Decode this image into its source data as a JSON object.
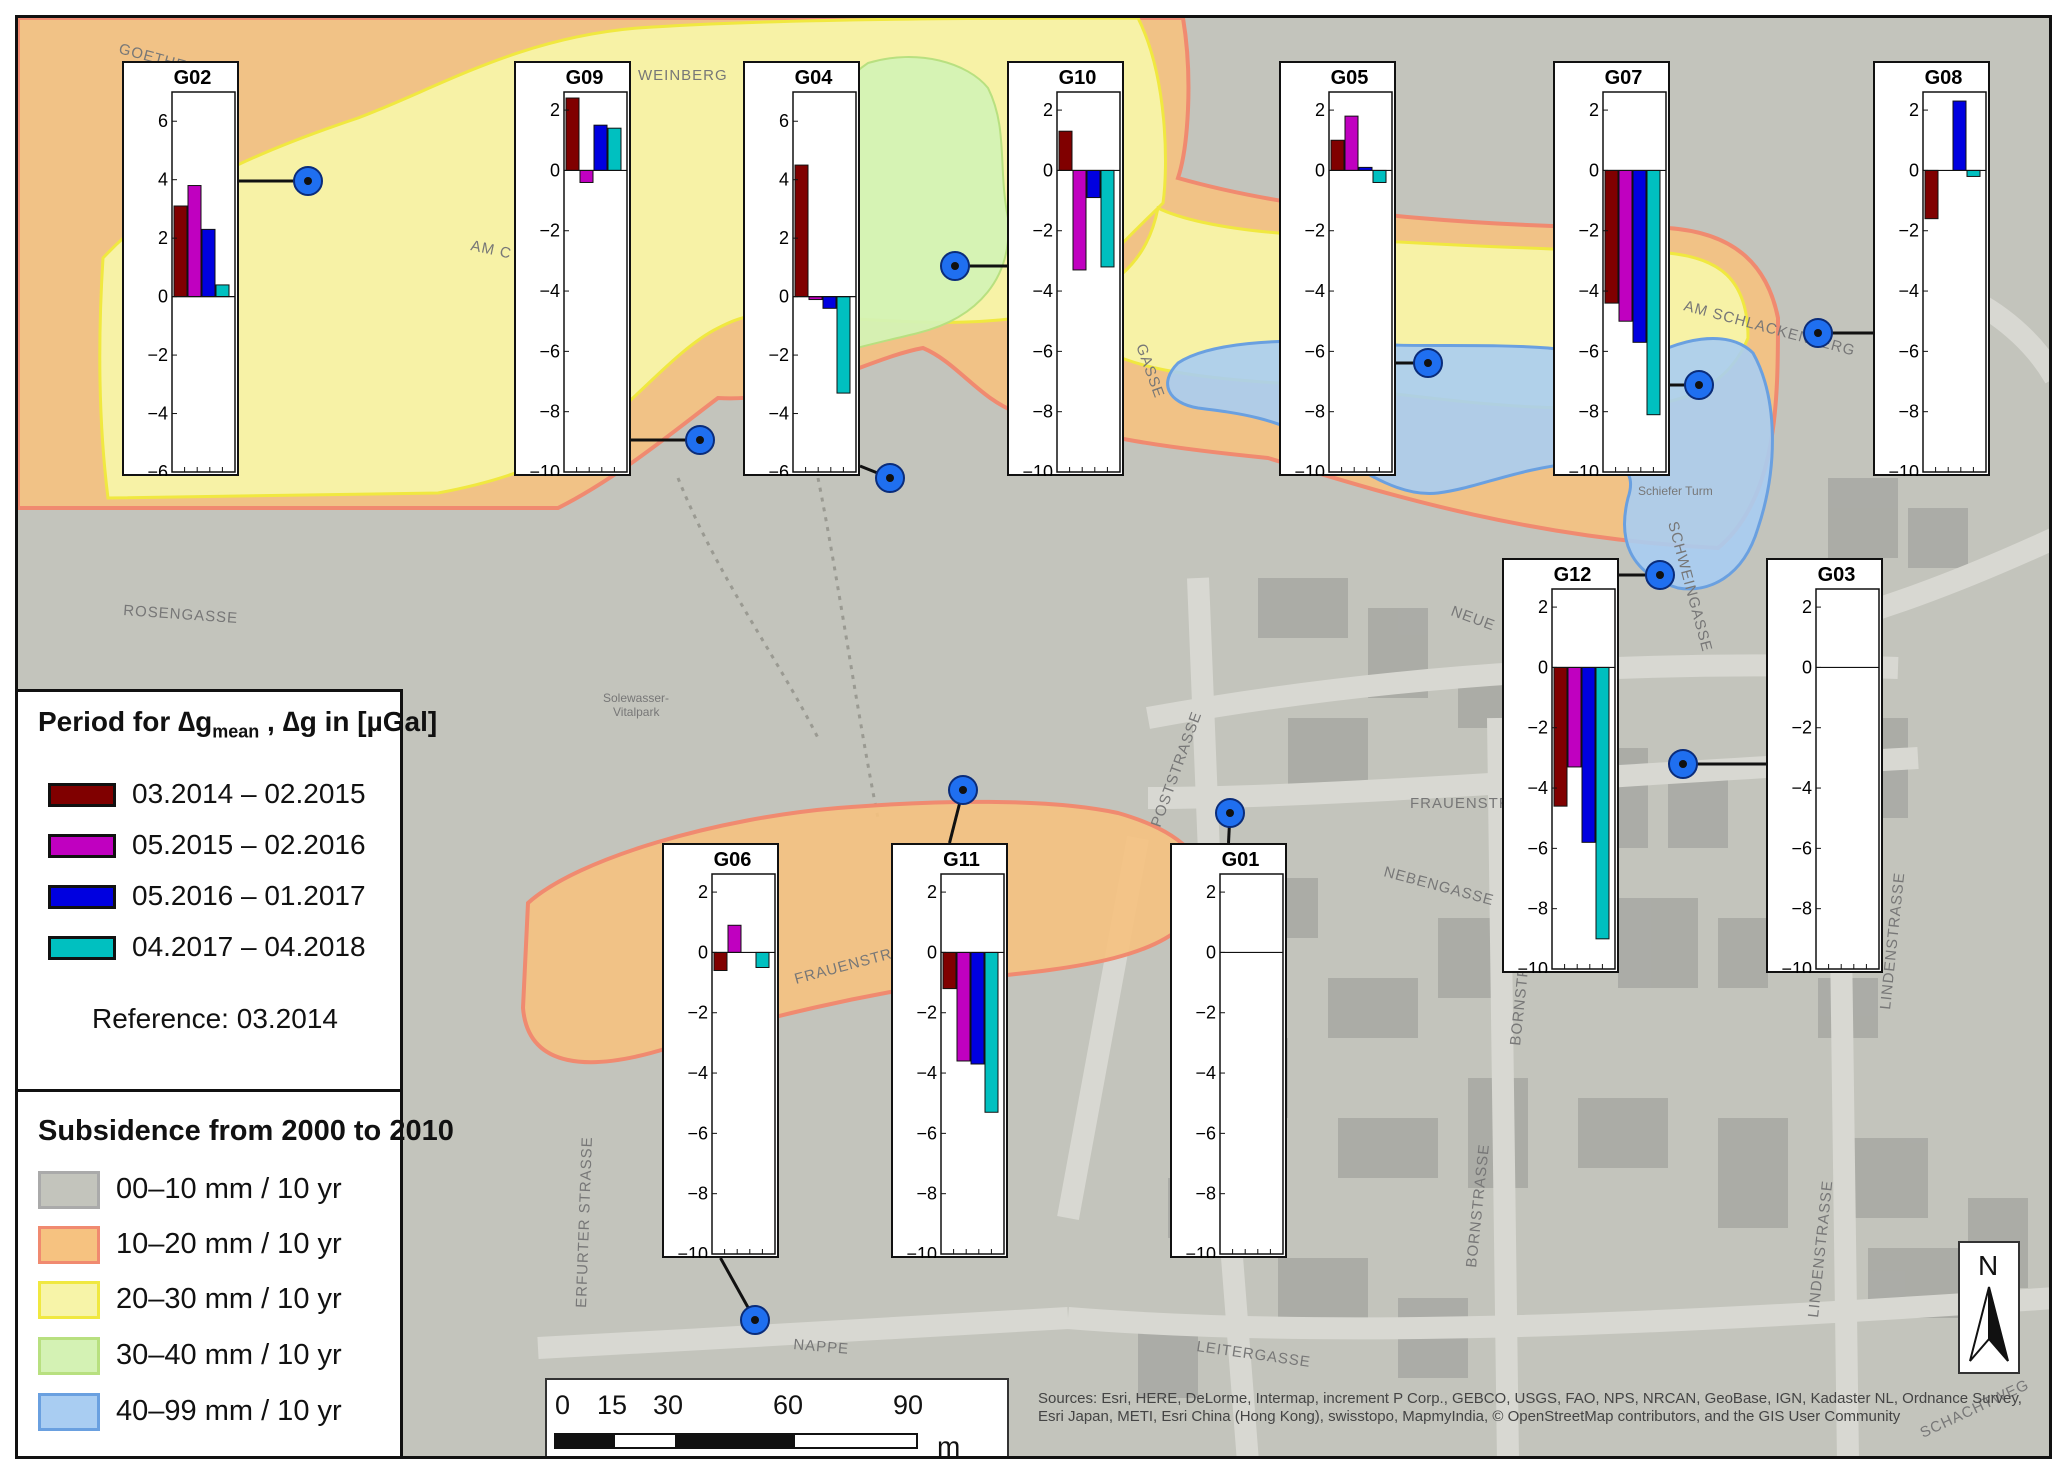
{
  "legend_periods": {
    "title_main": "Period for ",
    "title_dg": "∆g",
    "title_sub": "mean",
    "title_rest": " , ∆g in [µGal]",
    "items": [
      {
        "label": "03.2014 – 02.2015",
        "color": "#800000"
      },
      {
        "label": "05.2015 – 02.2016",
        "color": "#c000c0"
      },
      {
        "label": "05.2016 – 01.2017",
        "color": "#0000e0"
      },
      {
        "label": "04.2017 – 04.2018",
        "color": "#00c0c0"
      }
    ],
    "reference": "Reference: 03.2014"
  },
  "legend_subsidence": {
    "title": "Subsidence from 2000 to 2010",
    "items": [
      {
        "label": "00–10 mm / 10 yr",
        "color": "#c3c4bc"
      },
      {
        "label": "10–20 mm / 10 yr",
        "color": "#f6c280"
      },
      {
        "label": "20–30 mm / 10 yr",
        "color": "#f7f4a8"
      },
      {
        "label": "30–40 mm / 10 yr",
        "color": "#d4f2b4"
      },
      {
        "label": "40–99 mm / 10 yr",
        "color": "#a9cdf2"
      }
    ]
  },
  "scalebar": {
    "ticks": [
      "0",
      "15",
      "30",
      "60",
      "90"
    ],
    "unit": "m"
  },
  "north_arrow": {
    "label": "N"
  },
  "attribution": "Sources: Esri, HERE, DeLorme, Intermap, increment P Corp., GEBCO, USGS, FAO, NPS, NRCAN, GeoBase, IGN, Kadaster NL, Ordnance Survey, Esri Japan, METI, Esri China (Hong Kong), swisstopo, MapmyIndia, © OpenStreetMap contributors, and the GIS User Community",
  "street_labels": [
    "GOETHESTR",
    "WEINBERG",
    "AM C",
    "ROSENGASSE",
    "Solewasser-",
    "Vitalpark",
    "GASSE",
    "AM SCHLACKENBERG",
    "Schiefer Turm",
    "SCHWEINGASSE",
    "NEUE",
    "FRAUENSTR",
    "NEBENGASSE",
    "POSTSTRASSE",
    "FRAUENSTR",
    "BORNSTRASSE",
    "BORNSTRASSE",
    "LINDENSTRASSE",
    "LINDENSTRASSE",
    "LEITERGASSE",
    "NAPPE",
    "ERFURTER STRASSE",
    "SCHACHTWEG"
  ],
  "chart_data": [
    {
      "type": "bar",
      "title": "G02",
      "ylim": [
        -6,
        7
      ],
      "yticks": [
        6,
        4,
        2,
        0,
        -2,
        -4,
        -6
      ],
      "values": [
        3.1,
        3.8,
        2.3,
        0.4
      ]
    },
    {
      "type": "bar",
      "title": "G09",
      "ylim": [
        -10,
        2.6
      ],
      "yticks": [
        2,
        0,
        -2,
        -4,
        -6,
        -8,
        -10
      ],
      "values": [
        2.4,
        -0.4,
        1.5,
        1.4
      ]
    },
    {
      "type": "bar",
      "title": "G04",
      "ylim": [
        -6,
        7
      ],
      "yticks": [
        6,
        4,
        2,
        0,
        -2,
        -4,
        -6
      ],
      "values": [
        4.5,
        -0.1,
        -0.4,
        -3.3
      ]
    },
    {
      "type": "bar",
      "title": "G10",
      "ylim": [
        -10,
        2.6
      ],
      "yticks": [
        2,
        0,
        -2,
        -4,
        -6,
        -8,
        -10
      ],
      "values": [
        1.3,
        -3.3,
        -0.9,
        -3.2
      ]
    },
    {
      "type": "bar",
      "title": "G05",
      "ylim": [
        -10,
        2.6
      ],
      "yticks": [
        2,
        0,
        -2,
        -4,
        -6,
        -8,
        -10
      ],
      "values": [
        1.0,
        1.8,
        0.1,
        -0.4
      ]
    },
    {
      "type": "bar",
      "title": "G07",
      "ylim": [
        -10,
        2.6
      ],
      "yticks": [
        2,
        0,
        -2,
        -4,
        -6,
        -8,
        -10
      ],
      "values": [
        -4.4,
        -5.0,
        -5.7,
        -8.1
      ]
    },
    {
      "type": "bar",
      "title": "G08",
      "ylim": [
        -10,
        2.6
      ],
      "yticks": [
        2,
        0,
        -2,
        -4,
        -6,
        -8,
        -10
      ],
      "values": [
        -1.6,
        0,
        2.3,
        -0.2
      ]
    },
    {
      "type": "bar",
      "title": "G12",
      "ylim": [
        -10,
        2.6
      ],
      "yticks": [
        2,
        0,
        -2,
        -4,
        -6,
        -8,
        -10
      ],
      "values": [
        -4.6,
        -3.3,
        -5.8,
        -9.0
      ]
    },
    {
      "type": "bar",
      "title": "G03",
      "ylim": [
        -10,
        2.6
      ],
      "yticks": [
        2,
        0,
        -2,
        -4,
        -6,
        -8,
        -10
      ],
      "values": [
        0,
        0,
        0,
        0
      ]
    },
    {
      "type": "bar",
      "title": "G06",
      "ylim": [
        -10,
        2.6
      ],
      "yticks": [
        2,
        0,
        -2,
        -4,
        -6,
        -8,
        -10
      ],
      "values": [
        -0.6,
        0.9,
        0,
        -0.5
      ]
    },
    {
      "type": "bar",
      "title": "G11",
      "ylim": [
        -10,
        2.6
      ],
      "yticks": [
        2,
        0,
        -2,
        -4,
        -6,
        -8,
        -10
      ],
      "values": [
        -1.2,
        -3.6,
        -3.7,
        -5.3
      ]
    },
    {
      "type": "bar",
      "title": "G01",
      "ylim": [
        -10,
        2.6
      ],
      "yticks": [
        2,
        0,
        -2,
        -4,
        -6,
        -8,
        -10
      ],
      "values": [
        0,
        0,
        0,
        0
      ]
    }
  ]
}
